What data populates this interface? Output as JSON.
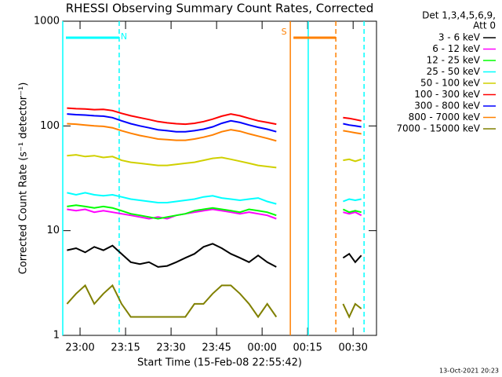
{
  "chart_data": {
    "type": "line",
    "title": "RHESSI Observing Summary Count Rates, Corrected",
    "header": [
      "Det 1,3,4,5,6,9,",
      "Att 0"
    ],
    "x_label": "Start Time (15-Feb-08 22:55:42)",
    "y_label": "Corrected Count Rate (s⁻¹ detector⁻¹)",
    "footer": "13-Oct-2021 20:23",
    "log_y": true,
    "xlim": [
      -1.4,
      102
    ],
    "xticks": [
      {
        "value": 4.3,
        "label": "23:00"
      },
      {
        "value": 19.3,
        "label": "23:15"
      },
      {
        "value": 34.3,
        "label": "23:30"
      },
      {
        "value": 49.3,
        "label": "23:45"
      },
      {
        "value": 64.3,
        "label": "00:00"
      },
      {
        "value": 79.3,
        "label": "00:15"
      },
      {
        "value": 94.3,
        "label": "00:30"
      }
    ],
    "ylim": [
      1,
      1000
    ],
    "yticks": [
      1,
      10,
      100,
      1000
    ],
    "x": [
      0,
      3,
      6,
      9,
      12,
      15,
      18,
      21,
      24,
      27,
      30,
      33,
      36,
      39,
      42,
      45,
      48,
      51,
      54,
      57,
      60,
      63,
      66,
      69,
      80,
      91,
      93,
      95,
      97
    ],
    "series": [
      {
        "name": "3 - 6 keV",
        "color": "#000000",
        "values": [
          6.5,
          6.8,
          6.2,
          7,
          6.5,
          7.2,
          6,
          5,
          4.8,
          5,
          4.5,
          4.6,
          5,
          5.5,
          6,
          7,
          7.5,
          6.8,
          6,
          5.5,
          5,
          5.8,
          5,
          4.5,
          null,
          5.5,
          6,
          5,
          5.8
        ]
      },
      {
        "name": "6 - 12 keV",
        "color": "#ff00ff",
        "values": [
          16,
          15.5,
          16,
          15,
          15.5,
          15,
          14.5,
          14,
          13.5,
          13,
          13.5,
          13,
          14,
          14.5,
          15,
          15.5,
          16,
          15.5,
          15,
          14.5,
          15,
          14.5,
          14,
          13,
          null,
          15,
          14.5,
          15,
          14
        ]
      },
      {
        "name": "12 - 25 keV",
        "color": "#00ff00",
        "values": [
          17,
          17.5,
          17,
          16.5,
          17,
          16.5,
          15.5,
          14.5,
          14,
          13.5,
          13,
          13.5,
          14,
          14.5,
          15.5,
          16,
          16.5,
          16,
          15.5,
          15,
          16,
          15.5,
          15,
          14,
          null,
          16,
          15,
          15.5,
          15
        ]
      },
      {
        "name": "25 - 50 keV",
        "color": "#00ffff",
        "values": [
          23,
          22,
          23,
          22,
          21.5,
          22,
          21,
          20,
          19.5,
          19,
          18.5,
          18.5,
          19,
          19.5,
          20,
          21,
          21.5,
          20.5,
          20,
          19.5,
          20,
          20.5,
          19,
          18,
          null,
          19,
          20,
          19.5,
          20
        ]
      },
      {
        "name": "50 - 100 keV",
        "color": "#d0d000",
        "values": [
          52,
          53,
          51,
          52,
          50,
          51,
          47,
          45,
          44,
          43,
          42,
          42,
          43,
          44,
          45,
          47,
          49,
          50,
          48,
          46,
          44,
          42,
          41,
          40,
          null,
          47,
          48,
          46,
          48
        ]
      },
      {
        "name": "100 - 300 keV",
        "color": "#ff0000",
        "values": [
          148,
          146,
          145,
          143,
          144,
          140,
          132,
          125,
          120,
          115,
          110,
          107,
          105,
          104,
          106,
          110,
          116,
          124,
          130,
          125,
          118,
          112,
          108,
          104,
          null,
          120,
          118,
          115,
          112
        ]
      },
      {
        "name": "300 - 800 keV",
        "color": "#0000ff",
        "values": [
          130,
          128,
          127,
          125,
          124,
          120,
          112,
          105,
          100,
          96,
          92,
          90,
          88,
          88,
          90,
          93,
          98,
          106,
          112,
          108,
          102,
          97,
          93,
          88,
          null,
          105,
          102,
          100,
          98
        ]
      },
      {
        "name": "800 - 7000 keV",
        "color": "#ff8000",
        "values": [
          105,
          104,
          102,
          100,
          99,
          96,
          90,
          85,
          81,
          78,
          75,
          74,
          73,
          73,
          75,
          78,
          82,
          88,
          92,
          89,
          84,
          80,
          76,
          72,
          null,
          90,
          88,
          86,
          84
        ]
      },
      {
        "name": "7000 - 15000 keV",
        "color": "#808000",
        "values": [
          2,
          2.5,
          3,
          2,
          2.5,
          3,
          2,
          1.5,
          1.5,
          1.5,
          1.5,
          1.5,
          1.5,
          1.5,
          2,
          2,
          2.5,
          3,
          3,
          2.5,
          2,
          1.5,
          2,
          1.5,
          null,
          2,
          1.5,
          2,
          1.8
        ]
      }
    ],
    "flags": [
      {
        "label": "N",
        "color": "#00ffff",
        "x": [
          -1.4,
          17.2
        ]
      },
      {
        "label": "S",
        "color": "#ff8000",
        "x": [
          73.6,
          88.6
        ]
      }
    ],
    "markers": [
      {
        "x": -1.4,
        "color": "#00ffff",
        "dashed": false
      },
      {
        "x": 17.2,
        "color": "#00ffff",
        "dashed": true
      },
      {
        "x": 73.6,
        "color": "#ff8000",
        "dashed": false
      },
      {
        "x": 79.5,
        "color": "#00ffff",
        "dashed": false
      },
      {
        "x": 88.6,
        "color": "#ff8000",
        "dashed": true
      },
      {
        "x": 97.9,
        "color": "#00ffff",
        "dashed": true
      }
    ]
  }
}
